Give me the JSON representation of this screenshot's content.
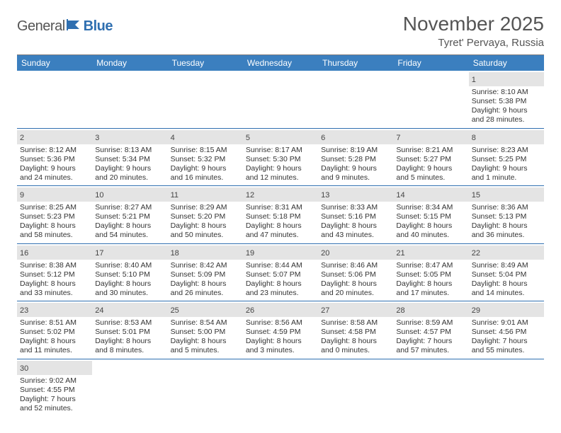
{
  "logo": {
    "general": "General",
    "blue": "Blue"
  },
  "title": "November 2025",
  "location": "Tyret' Pervaya, Russia",
  "colors": {
    "header_bg": "#3b7fbf",
    "header_text": "#ffffff",
    "daynum_bg": "#e4e4e4",
    "row_divider": "#2f6fb0",
    "text": "#333333",
    "title_color": "#555555"
  },
  "weekdays": [
    "Sunday",
    "Monday",
    "Tuesday",
    "Wednesday",
    "Thursday",
    "Friday",
    "Saturday"
  ],
  "first_weekday_index": 6,
  "days": [
    {
      "n": 1,
      "sunrise": "8:10 AM",
      "sunset": "5:38 PM",
      "dl": "9 hours and 28 minutes."
    },
    {
      "n": 2,
      "sunrise": "8:12 AM",
      "sunset": "5:36 PM",
      "dl": "9 hours and 24 minutes."
    },
    {
      "n": 3,
      "sunrise": "8:13 AM",
      "sunset": "5:34 PM",
      "dl": "9 hours and 20 minutes."
    },
    {
      "n": 4,
      "sunrise": "8:15 AM",
      "sunset": "5:32 PM",
      "dl": "9 hours and 16 minutes."
    },
    {
      "n": 5,
      "sunrise": "8:17 AM",
      "sunset": "5:30 PM",
      "dl": "9 hours and 12 minutes."
    },
    {
      "n": 6,
      "sunrise": "8:19 AM",
      "sunset": "5:28 PM",
      "dl": "9 hours and 9 minutes."
    },
    {
      "n": 7,
      "sunrise": "8:21 AM",
      "sunset": "5:27 PM",
      "dl": "9 hours and 5 minutes."
    },
    {
      "n": 8,
      "sunrise": "8:23 AM",
      "sunset": "5:25 PM",
      "dl": "9 hours and 1 minute."
    },
    {
      "n": 9,
      "sunrise": "8:25 AM",
      "sunset": "5:23 PM",
      "dl": "8 hours and 58 minutes."
    },
    {
      "n": 10,
      "sunrise": "8:27 AM",
      "sunset": "5:21 PM",
      "dl": "8 hours and 54 minutes."
    },
    {
      "n": 11,
      "sunrise": "8:29 AM",
      "sunset": "5:20 PM",
      "dl": "8 hours and 50 minutes."
    },
    {
      "n": 12,
      "sunrise": "8:31 AM",
      "sunset": "5:18 PM",
      "dl": "8 hours and 47 minutes."
    },
    {
      "n": 13,
      "sunrise": "8:33 AM",
      "sunset": "5:16 PM",
      "dl": "8 hours and 43 minutes."
    },
    {
      "n": 14,
      "sunrise": "8:34 AM",
      "sunset": "5:15 PM",
      "dl": "8 hours and 40 minutes."
    },
    {
      "n": 15,
      "sunrise": "8:36 AM",
      "sunset": "5:13 PM",
      "dl": "8 hours and 36 minutes."
    },
    {
      "n": 16,
      "sunrise": "8:38 AM",
      "sunset": "5:12 PM",
      "dl": "8 hours and 33 minutes."
    },
    {
      "n": 17,
      "sunrise": "8:40 AM",
      "sunset": "5:10 PM",
      "dl": "8 hours and 30 minutes."
    },
    {
      "n": 18,
      "sunrise": "8:42 AM",
      "sunset": "5:09 PM",
      "dl": "8 hours and 26 minutes."
    },
    {
      "n": 19,
      "sunrise": "8:44 AM",
      "sunset": "5:07 PM",
      "dl": "8 hours and 23 minutes."
    },
    {
      "n": 20,
      "sunrise": "8:46 AM",
      "sunset": "5:06 PM",
      "dl": "8 hours and 20 minutes."
    },
    {
      "n": 21,
      "sunrise": "8:47 AM",
      "sunset": "5:05 PM",
      "dl": "8 hours and 17 minutes."
    },
    {
      "n": 22,
      "sunrise": "8:49 AM",
      "sunset": "5:04 PM",
      "dl": "8 hours and 14 minutes."
    },
    {
      "n": 23,
      "sunrise": "8:51 AM",
      "sunset": "5:02 PM",
      "dl": "8 hours and 11 minutes."
    },
    {
      "n": 24,
      "sunrise": "8:53 AM",
      "sunset": "5:01 PM",
      "dl": "8 hours and 8 minutes."
    },
    {
      "n": 25,
      "sunrise": "8:54 AM",
      "sunset": "5:00 PM",
      "dl": "8 hours and 5 minutes."
    },
    {
      "n": 26,
      "sunrise": "8:56 AM",
      "sunset": "4:59 PM",
      "dl": "8 hours and 3 minutes."
    },
    {
      "n": 27,
      "sunrise": "8:58 AM",
      "sunset": "4:58 PM",
      "dl": "8 hours and 0 minutes."
    },
    {
      "n": 28,
      "sunrise": "8:59 AM",
      "sunset": "4:57 PM",
      "dl": "7 hours and 57 minutes."
    },
    {
      "n": 29,
      "sunrise": "9:01 AM",
      "sunset": "4:56 PM",
      "dl": "7 hours and 55 minutes."
    },
    {
      "n": 30,
      "sunrise": "9:02 AM",
      "sunset": "4:55 PM",
      "dl": "7 hours and 52 minutes."
    }
  ],
  "labels": {
    "sunrise": "Sunrise:",
    "sunset": "Sunset:",
    "daylight": "Daylight:"
  }
}
